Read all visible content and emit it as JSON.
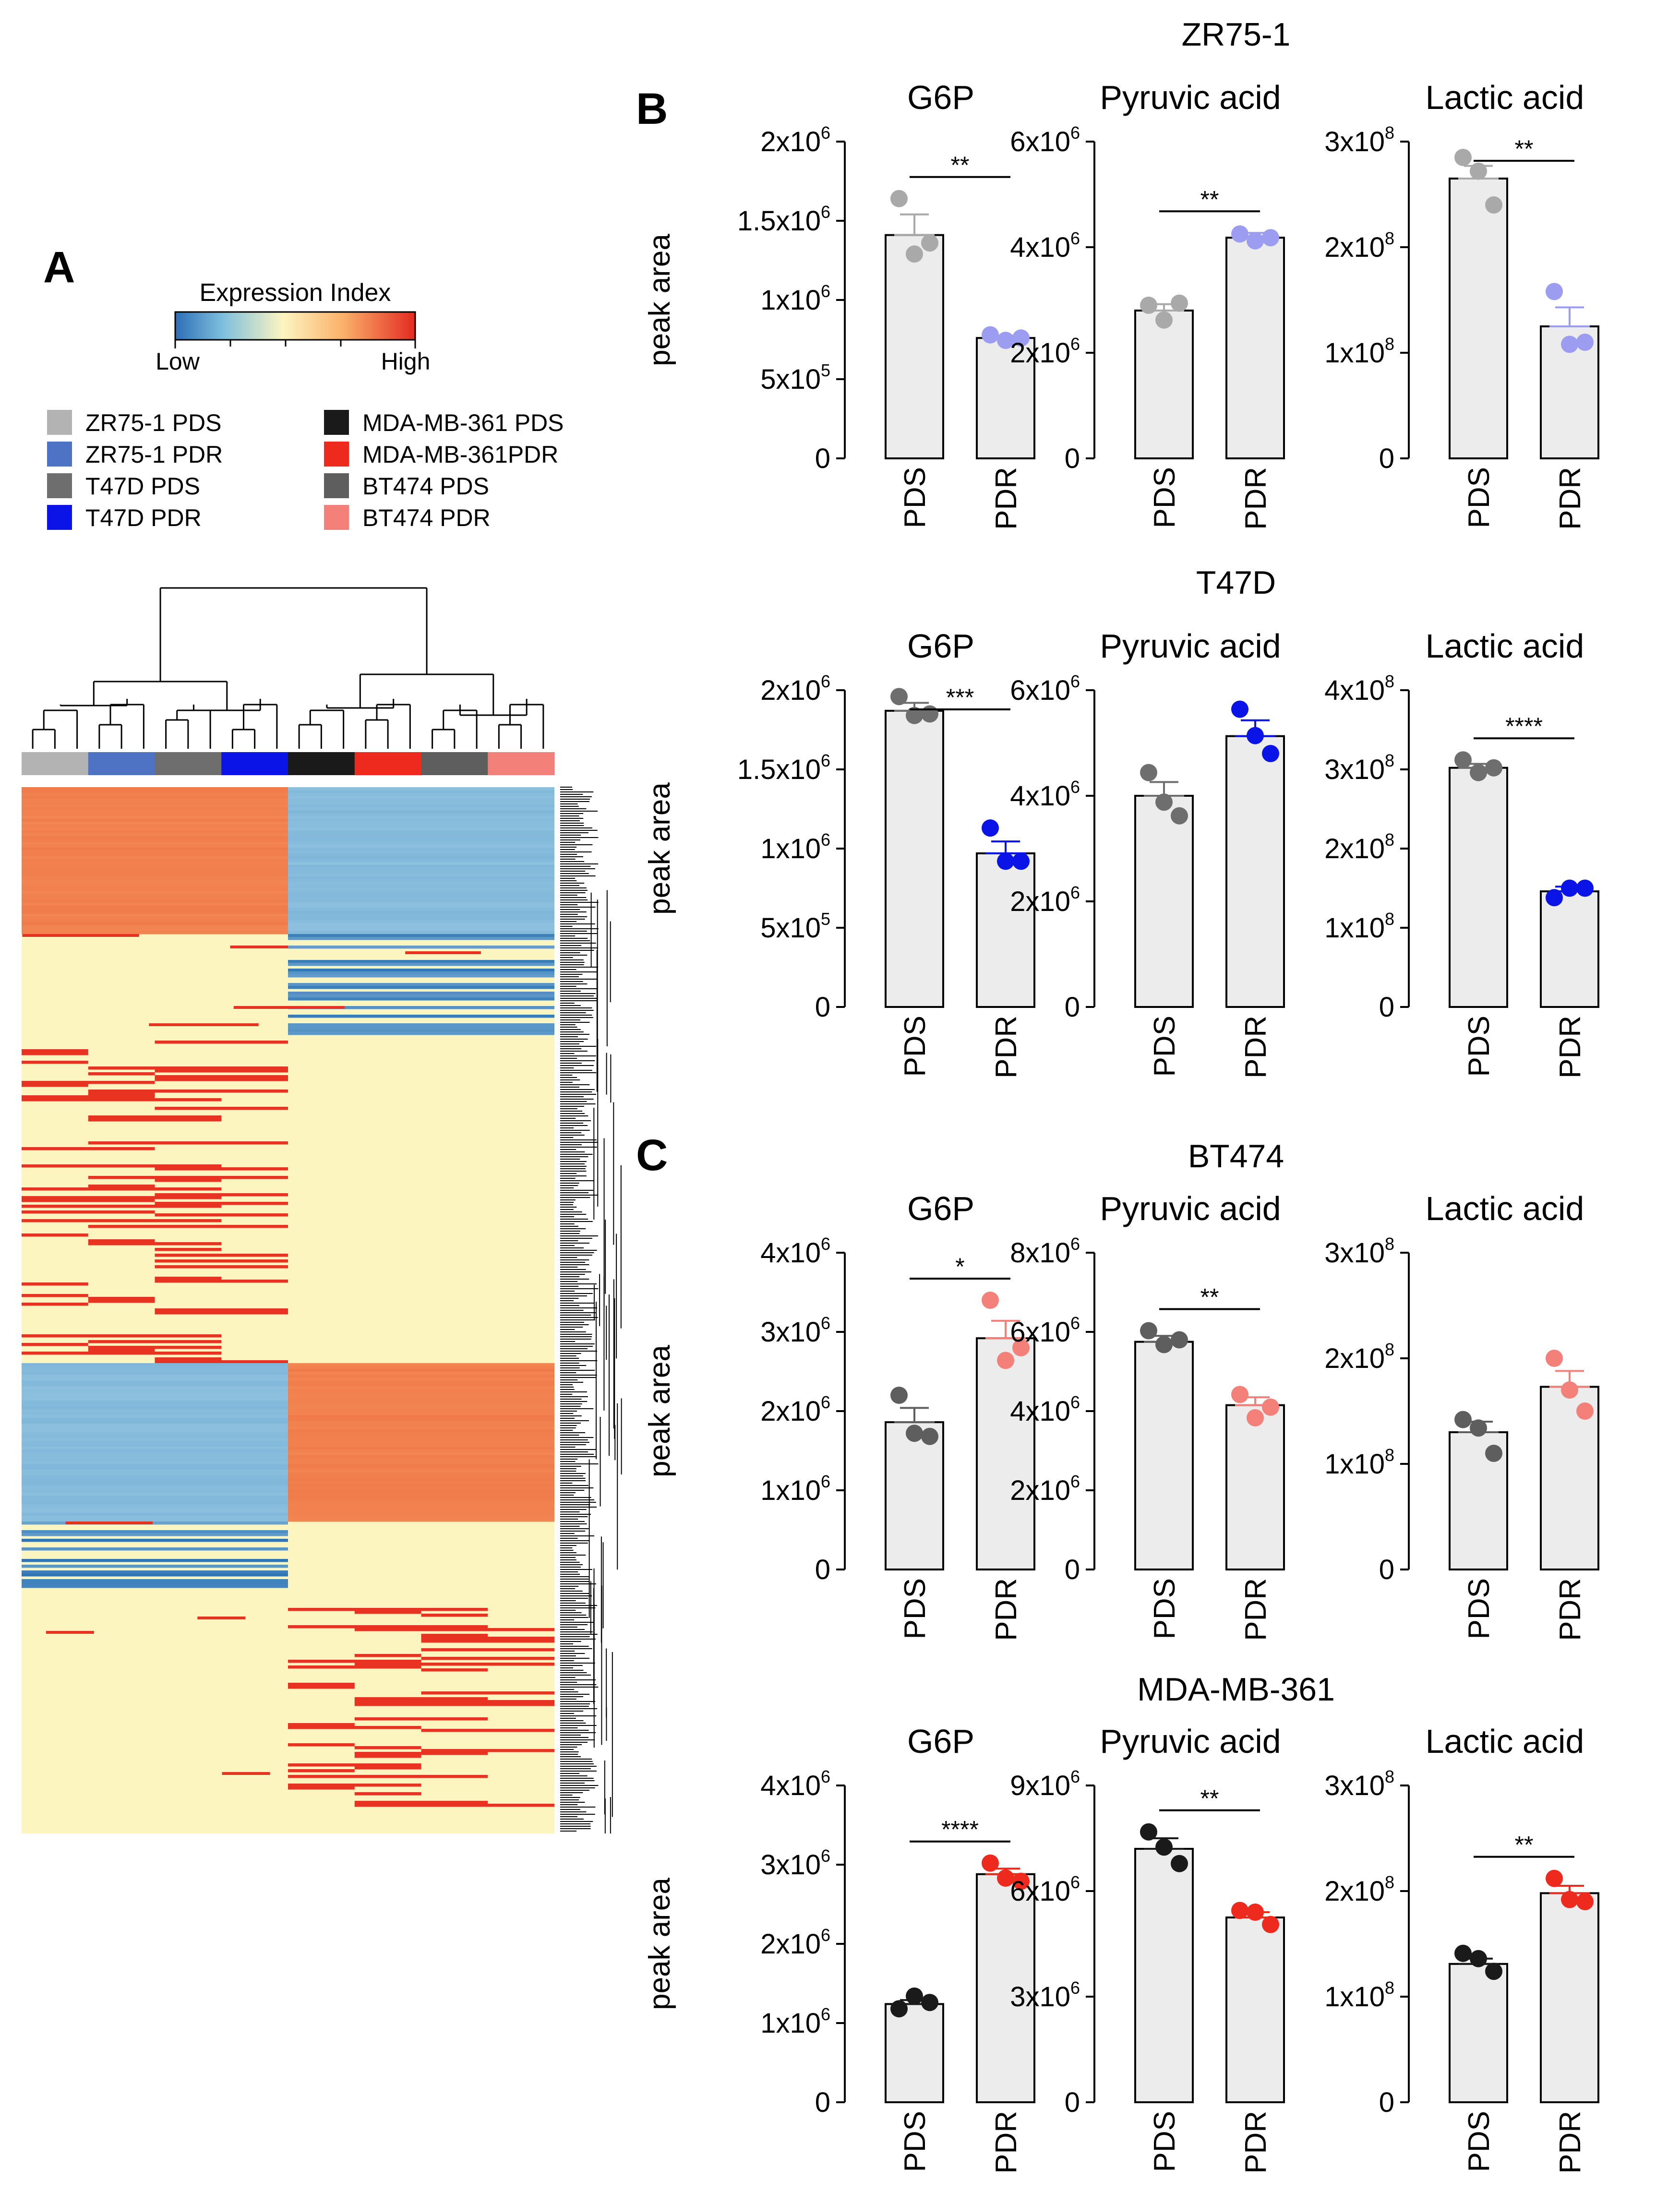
{
  "panels": {
    "a": "A",
    "b": "B",
    "c": "C"
  },
  "heatmap": {
    "legend_title": "Expression Index",
    "scale_low": "Low",
    "scale_high": "High",
    "groups": [
      {
        "label": "ZR75-1 PDS",
        "color": "#b3b3b3"
      },
      {
        "label": "ZR75-1 PDR",
        "color": "#4f73c4"
      },
      {
        "label": "T47D PDS",
        "color": "#6e6e6e"
      },
      {
        "label": "T47D PDR",
        "color": "#0a14e6"
      },
      {
        "label": "MDA-MB-361 PDS",
        "color": "#1a1a1a"
      },
      {
        "label": "MDA-MB-361PDR",
        "color": "#ee2a1e"
      },
      {
        "label": "BT474 PDS",
        "color": "#5e5e5e"
      },
      {
        "label": "BT474 PDR",
        "color": "#f38079"
      }
    ],
    "colors": {
      "low": "#2f74b5",
      "mid": "#fdf5c0",
      "high": "#e83222"
    }
  },
  "chart_data": [
    {
      "type": "bar",
      "cell_line": "ZR75-1",
      "title": "G6P",
      "ylabel": "peak area",
      "categories": [
        "PDS",
        "PDR"
      ],
      "values": [
        1410000,
        760000
      ],
      "sem": [
        130000,
        15000
      ],
      "points": [
        [
          1640000,
          1290000,
          1360000
        ],
        [
          780000,
          745000,
          760000
        ]
      ],
      "ylim": [
        0,
        2000000
      ],
      "ytick_labels": [
        "0",
        "5x10^5",
        "1x10^6",
        "1.5x10^6",
        "2x10^6"
      ],
      "significance": "**",
      "point_colors": [
        "#a9a9a9",
        "#9c9cf0"
      ]
    },
    {
      "type": "bar",
      "cell_line": "ZR75-1",
      "title": "Pyruvic acid",
      "categories": [
        "PDS",
        "PDR"
      ],
      "values": [
        2800000,
        4180000
      ],
      "sem": [
        120000,
        90000
      ],
      "points": [
        [
          2900000,
          2620000,
          2940000
        ],
        [
          4250000,
          4120000,
          4180000
        ]
      ],
      "ylim": [
        0,
        6000000
      ],
      "ytick_labels": [
        "0",
        "2x10^6",
        "4x10^6",
        "6x10^6"
      ],
      "significance": "**",
      "point_colors": [
        "#a9a9a9",
        "#9c9cf0"
      ]
    },
    {
      "type": "bar",
      "cell_line": "ZR75-1",
      "title": "Lactic acid",
      "categories": [
        "PDS",
        "PDR"
      ],
      "values": [
        265000000,
        125000000
      ],
      "sem": [
        12000000,
        18000000
      ],
      "points": [
        [
          285000000,
          272000000,
          240000000
        ],
        [
          158000000,
          108000000,
          110000000
        ]
      ],
      "ylim": [
        0,
        300000000
      ],
      "ytick_labels": [
        "0",
        "1x10^8",
        "2x10^8",
        "3x10^8"
      ],
      "significance": "**",
      "point_colors": [
        "#a9a9a9",
        "#9c9cf0"
      ]
    },
    {
      "type": "bar",
      "cell_line": "T47D",
      "title": "G6P",
      "ylabel": "peak area",
      "categories": [
        "PDS",
        "PDR"
      ],
      "values": [
        1870000,
        970000
      ],
      "sem": [
        50000,
        75000
      ],
      "points": [
        [
          1960000,
          1840000,
          1850000
        ],
        [
          1130000,
          920000,
          920000
        ]
      ],
      "ylim": [
        0,
        2000000
      ],
      "ytick_labels": [
        "0",
        "5x10^5",
        "1x10^6",
        "1.5x10^6",
        "2x10^6"
      ],
      "significance": "***",
      "point_colors": [
        "#6e6e6e",
        "#0a14e6"
      ]
    },
    {
      "type": "bar",
      "cell_line": "T47D",
      "title": "Pyruvic acid",
      "categories": [
        "PDS",
        "PDR"
      ],
      "values": [
        4000000,
        5130000
      ],
      "sem": [
        260000,
        300000
      ],
      "points": [
        [
          4440000,
          3880000,
          3620000
        ],
        [
          5640000,
          5140000,
          4800000
        ]
      ],
      "ylim": [
        0,
        6000000
      ],
      "ytick_labels": [
        "0",
        "2x10^6",
        "4x10^6",
        "6x10^6"
      ],
      "significance": "",
      "point_colors": [
        "#6e6e6e",
        "#0a14e6"
      ]
    },
    {
      "type": "bar",
      "cell_line": "T47D",
      "title": "Lactic acid",
      "categories": [
        "PDS",
        "PDR"
      ],
      "values": [
        302000000,
        146000000
      ],
      "sem": [
        5000000,
        6000000
      ],
      "points": [
        [
          312000000,
          296000000,
          302000000
        ],
        [
          138000000,
          150000000,
          150000000
        ]
      ],
      "ylim": [
        0,
        400000000
      ],
      "ytick_labels": [
        "0",
        "1x10^8",
        "2x10^8",
        "3x10^8",
        "4x10^8"
      ],
      "significance": "****",
      "point_colors": [
        "#6e6e6e",
        "#0a14e6"
      ]
    },
    {
      "type": "bar",
      "cell_line": "BT474",
      "title": "G6P",
      "ylabel": "peak area",
      "categories": [
        "PDS",
        "PDR"
      ],
      "values": [
        1860000,
        2920000
      ],
      "sem": [
        180000,
        220000
      ],
      "points": [
        [
          2200000,
          1720000,
          1680000
        ],
        [
          3400000,
          2640000,
          2800000
        ]
      ],
      "ylim": [
        0,
        4000000
      ],
      "ytick_labels": [
        "0",
        "1x10^6",
        "2x10^6",
        "3x10^6",
        "4x10^6"
      ],
      "significance": "*",
      "point_colors": [
        "#5e5e5e",
        "#f38079"
      ]
    },
    {
      "type": "bar",
      "cell_line": "BT474",
      "title": "Pyruvic acid",
      "categories": [
        "PDS",
        "PDR"
      ],
      "values": [
        5750000,
        4150000
      ],
      "sem": [
        150000,
        200000
      ],
      "points": [
        [
          6030000,
          5680000,
          5800000
        ],
        [
          4420000,
          3830000,
          4100000
        ]
      ],
      "ylim": [
        0,
        8000000
      ],
      "ytick_labels": [
        "0",
        "2x10^6",
        "4x10^6",
        "6x10^6",
        "8x10^6"
      ],
      "significance": "**",
      "point_colors": [
        "#5e5e5e",
        "#f38079"
      ]
    },
    {
      "type": "bar",
      "cell_line": "BT474",
      "title": "Lactic acid",
      "categories": [
        "PDS",
        "PDR"
      ],
      "values": [
        130000000,
        173000000
      ],
      "sem": [
        10000000,
        15000000
      ],
      "points": [
        [
          142000000,
          134000000,
          110000000
        ],
        [
          200000000,
          170000000,
          150000000
        ]
      ],
      "ylim": [
        0,
        300000000
      ],
      "ytick_labels": [
        "0",
        "1x10^8",
        "2x10^8",
        "3x10^8"
      ],
      "significance": "",
      "point_colors": [
        "#5e5e5e",
        "#f38079"
      ]
    },
    {
      "type": "bar",
      "cell_line": "MDA-MB-361",
      "title": "G6P",
      "ylabel": "peak area",
      "categories": [
        "PDS",
        "PDR"
      ],
      "values": [
        1240000,
        2880000
      ],
      "sem": [
        50000,
        70000
      ],
      "points": [
        [
          1180000,
          1340000,
          1260000
        ],
        [
          3020000,
          2830000,
          2790000
        ]
      ],
      "ylim": [
        0,
        4000000
      ],
      "ytick_labels": [
        "0",
        "1x10^6",
        "2x10^6",
        "3x10^6",
        "4x10^6"
      ],
      "significance": "****",
      "point_colors": [
        "#1a1a1a",
        "#ee2a1e"
      ]
    },
    {
      "type": "bar",
      "cell_line": "MDA-MB-361",
      "title": "Pyruvic acid",
      "categories": [
        "PDS",
        "PDR"
      ],
      "values": [
        7200000,
        5250000
      ],
      "sem": [
        300000,
        150000
      ],
      "points": [
        [
          7680000,
          7250000,
          6780000
        ],
        [
          5450000,
          5400000,
          5050000
        ]
      ],
      "ylim": [
        0,
        9000000
      ],
      "ytick_labels": [
        "0",
        "3x10^6",
        "6x10^6",
        "9x10^6"
      ],
      "significance": "**",
      "point_colors": [
        "#1a1a1a",
        "#ee2a1e"
      ]
    },
    {
      "type": "bar",
      "cell_line": "MDA-MB-361",
      "title": "Lactic acid",
      "categories": [
        "PDS",
        "PDR"
      ],
      "values": [
        131000000,
        198000000
      ],
      "sem": [
        5000000,
        7000000
      ],
      "points": [
        [
          141000000,
          136000000,
          124000000
        ],
        [
          212000000,
          192000000,
          190000000
        ]
      ],
      "ylim": [
        0,
        300000000
      ],
      "ytick_labels": [
        "0",
        "1x10^8",
        "2x10^8",
        "3x10^8"
      ],
      "significance": "**",
      "point_colors": [
        "#1a1a1a",
        "#ee2a1e"
      ]
    }
  ]
}
